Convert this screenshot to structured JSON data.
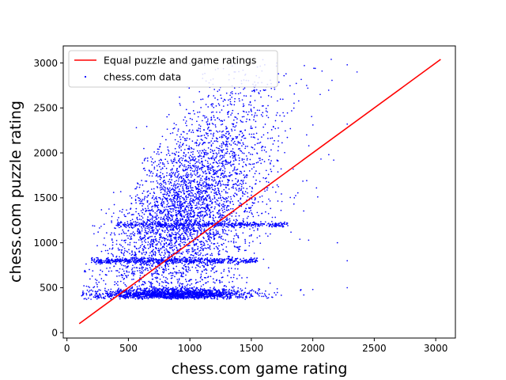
{
  "chart_data": {
    "type": "scatter",
    "xlabel": "chess.com game rating",
    "ylabel": "chess.com puzzle rating",
    "xlim": [
      -30,
      3160
    ],
    "ylim": [
      -60,
      3190
    ],
    "x_ticks": [
      0,
      500,
      1000,
      1500,
      2000,
      2500,
      3000
    ],
    "y_ticks": [
      0,
      500,
      1000,
      1500,
      2000,
      2500,
      3000
    ],
    "grid": false,
    "legend_position": "top-left",
    "series": [
      {
        "name": "Equal puzzle and game ratings",
        "kind": "line",
        "color": "#ff0000",
        "points": [
          [
            100,
            100
          ],
          [
            3040,
            3040
          ]
        ]
      },
      {
        "name": "chess.com data",
        "kind": "scatter",
        "color": "#0000ff",
        "point_count_approx": 6500,
        "representative_points": [
          [
            120,
            410
          ],
          [
            150,
            380
          ],
          [
            200,
            420
          ],
          [
            250,
            400
          ],
          [
            300,
            395
          ],
          [
            330,
            410
          ],
          [
            400,
            420
          ],
          [
            500,
            390
          ],
          [
            600,
            400
          ],
          [
            700,
            410
          ],
          [
            800,
            395
          ],
          [
            900,
            400
          ],
          [
            1000,
            405
          ],
          [
            1100,
            400
          ],
          [
            1200,
            410
          ],
          [
            1300,
            415
          ],
          [
            1500,
            430
          ],
          [
            1700,
            420
          ],
          [
            1900,
            470
          ],
          [
            2000,
            480
          ],
          [
            2280,
            500
          ],
          [
            210,
            1190
          ],
          [
            220,
            1100
          ],
          [
            380,
            1330
          ],
          [
            420,
            1280
          ],
          [
            380,
            1560
          ],
          [
            640,
            1940
          ],
          [
            760,
            2100
          ],
          [
            1120,
            2410
          ],
          [
            1240,
            2700
          ],
          [
            1370,
            2900
          ],
          [
            1600,
            2700
          ],
          [
            1720,
            2880
          ],
          [
            1950,
            2750
          ],
          [
            2020,
            2940
          ],
          [
            2150,
            3040
          ],
          [
            2280,
            2980
          ],
          [
            2360,
            2900
          ],
          [
            2280,
            2320
          ],
          [
            2130,
            1980
          ],
          [
            2170,
            1920
          ],
          [
            2040,
            1510
          ],
          [
            2030,
            1610
          ],
          [
            2200,
            1000
          ],
          [
            2280,
            800
          ],
          [
            1640,
            1760
          ],
          [
            1530,
            1500
          ],
          [
            1300,
            1250
          ],
          [
            1100,
            1500
          ],
          [
            950,
            1150
          ],
          [
            1350,
            1800
          ],
          [
            1450,
            2050
          ],
          [
            1600,
            2200
          ],
          [
            1750,
            2350
          ],
          [
            1200,
            1700
          ],
          [
            800,
            800
          ],
          [
            600,
            800
          ],
          [
            400,
            790
          ],
          [
            1000,
            800
          ],
          [
            1200,
            800
          ],
          [
            1400,
            1200
          ],
          [
            1650,
            1200
          ],
          [
            1850,
            1500
          ],
          [
            1950,
            2200
          ],
          [
            2060,
            2650
          ]
        ]
      }
    ]
  }
}
